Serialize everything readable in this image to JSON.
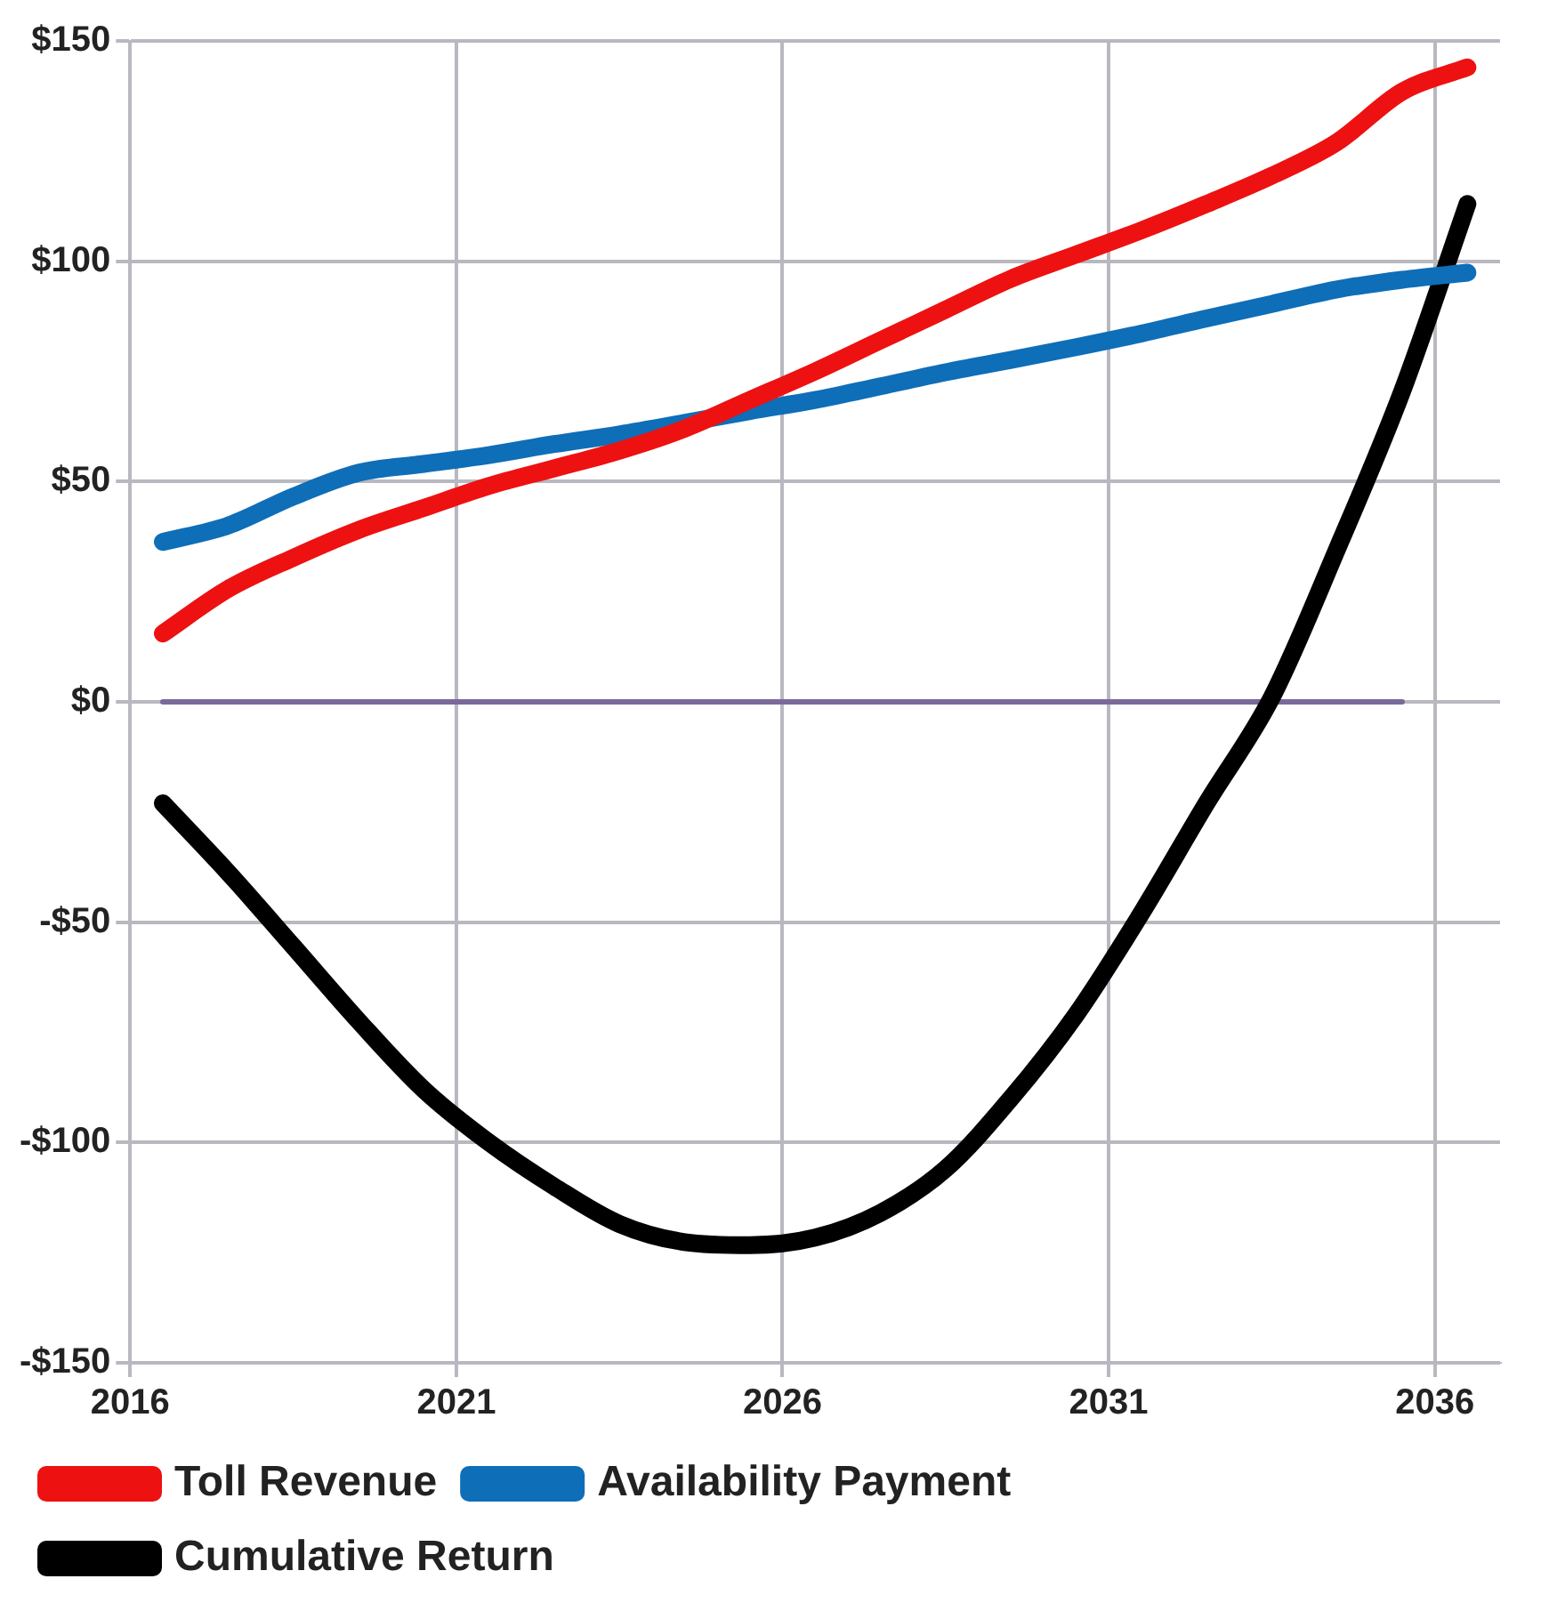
{
  "chart_data": {
    "type": "line",
    "x": [
      2016.5,
      2017.5,
      2018.5,
      2019.5,
      2020.5,
      2021.5,
      2022.5,
      2023.5,
      2024.5,
      2025.5,
      2026.5,
      2027.5,
      2028.5,
      2029.5,
      2030.5,
      2031.5,
      2032.5,
      2033.5,
      2034.5,
      2035.5,
      2036.5
    ],
    "series": [
      {
        "name": "Toll Revenue",
        "color": "#ee1111",
        "values": [
          15.5,
          25.6,
          32.7,
          39,
          44,
          49,
          53,
          57,
          62,
          68.5,
          75,
          82,
          89,
          96,
          101.5,
          107,
          113,
          119.4,
          127,
          138.5,
          144
        ]
      },
      {
        "name": "Availability Payment",
        "color": "#0e6eb8",
        "values": [
          36.3,
          40,
          46.6,
          52,
          54,
          56,
          58.5,
          60.7,
          63.3,
          66,
          68.5,
          71.6,
          74.8,
          77.6,
          80.5,
          83.6,
          87,
          90.3,
          93.6,
          95.8,
          97.4
        ]
      },
      {
        "name": "Cumulative Return",
        "color": "#000000",
        "values": [
          -23,
          -38.7,
          -55.5,
          -72.4,
          -88,
          -100,
          -110,
          -118.5,
          -122.6,
          -123.3,
          -121.6,
          -116,
          -106,
          -90,
          -71,
          -48,
          -23,
          1,
          34.6,
          70.5,
          113
        ]
      },
      {
        "color": "#7a6a9a",
        "x": [
          2016.5,
          2035.5
        ],
        "values": [
          0,
          0
        ]
      }
    ],
    "xlim": [
      2016,
      2037
    ],
    "xticks": [
      2016,
      2021,
      2026,
      2031,
      2036
    ],
    "ylim": [
      -150,
      150
    ],
    "yticks": [
      {
        "value": -150,
        "label": "-$150"
      },
      {
        "value": -100,
        "label": "-$100"
      },
      {
        "value": -50,
        "label": "-$50"
      },
      {
        "value": 0,
        "label": "$0"
      },
      {
        "value": 50,
        "label": "$50"
      },
      {
        "value": 100,
        "label": "$100"
      },
      {
        "value": 150,
        "label": "$150"
      }
    ],
    "grid": true,
    "legend": "bottom",
    "marker": "none",
    "line_style": "solid"
  }
}
